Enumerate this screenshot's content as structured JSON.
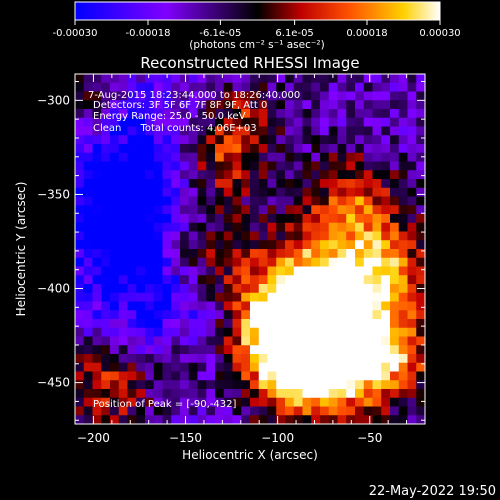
{
  "colorbar": {
    "tick_labels": [
      "-0.00030",
      "-0.00018",
      "-6.1e-05",
      "6.1e-05",
      "0.00018",
      "0.00030"
    ],
    "ticks": [
      -0.0003,
      -0.00018,
      -6.1e-05,
      6.1e-05,
      0.00018,
      0.0003
    ],
    "range": [
      -0.0003,
      0.0003
    ],
    "unit_label": "(photons cm⁻² s⁻¹ asec⁻²)",
    "colors": [
      "#0000ff",
      "#8000ff",
      "#000000",
      "#c00000",
      "#ff6000",
      "#ffff00",
      "#ffffff"
    ]
  },
  "chart_data": {
    "type": "heatmap",
    "title": "Reconstructed RHESSI Image",
    "xlabel": "Heliocentric X (arcsec)",
    "ylabel": "Heliocentric Y (arcsec)",
    "xlim": [
      -210,
      -20
    ],
    "ylim": [
      -472,
      -286
    ],
    "x_ticks": [
      -200,
      -150,
      -100,
      -50
    ],
    "y_ticks": [
      -300,
      -350,
      -400,
      -450
    ],
    "x_tick_labels": [
      "−200",
      "−150",
      "−100",
      "−50"
    ],
    "y_tick_labels": [
      "−300",
      "−350",
      "−400",
      "−450"
    ],
    "grid": false,
    "annotations": [
      "7-Aug-2015 18:23:44.000 to 18:26:40.000",
      "Detectors: 3F 5F 6F 7F 8F 9F, Att 0",
      "Energy Range: 25.0 - 50.0 keV",
      "Clean      Total counts: 4.06E+03"
    ],
    "peak_label": "Position of Peak = [-90,-432]",
    "peak": [
      -90,
      -432
    ]
  },
  "footer": {
    "timestamp": "22-May-2022 19:50"
  }
}
